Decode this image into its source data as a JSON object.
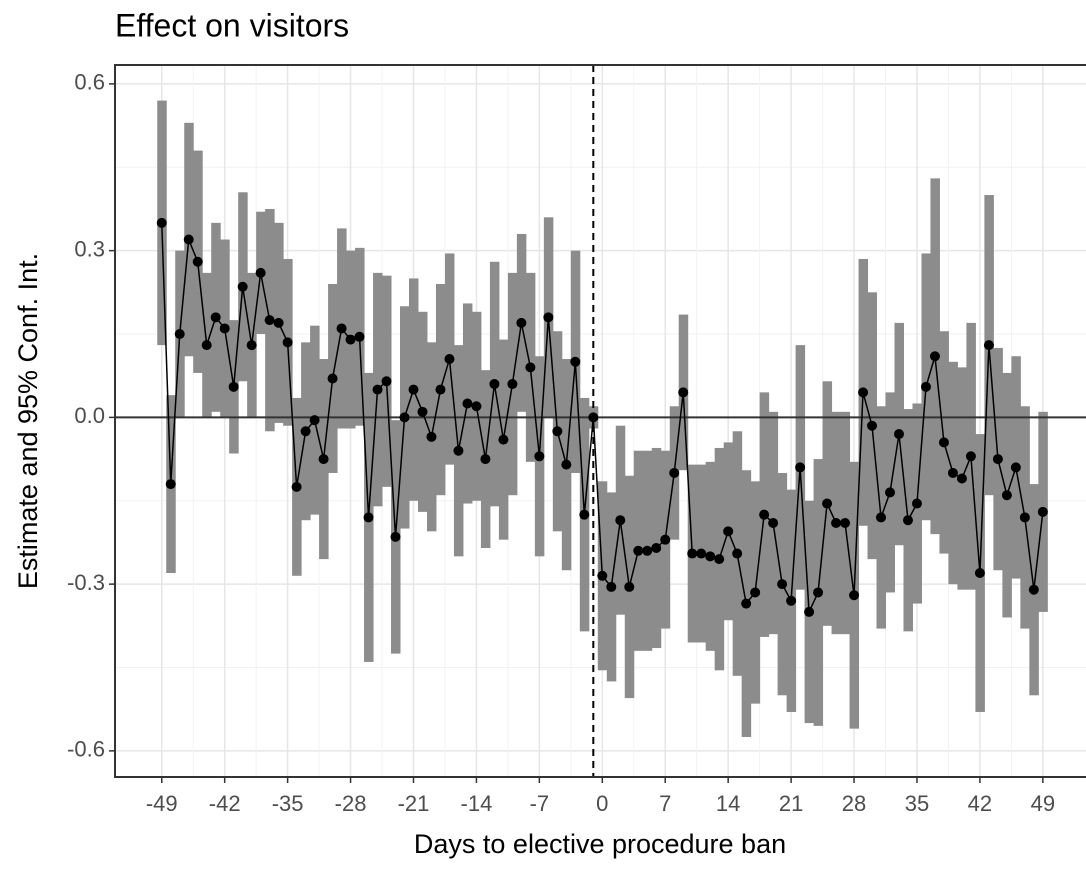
{
  "chart_data": {
    "type": "ribbon-line",
    "title": "Effect on visitors",
    "xlabel": "Days to elective procedure ban",
    "ylabel": "Estimate and 95% Conf. Int.",
    "x": [
      -49,
      -48,
      -47,
      -46,
      -45,
      -44,
      -43,
      -42,
      -41,
      -40,
      -39,
      -38,
      -37,
      -36,
      -35,
      -34,
      -33,
      -32,
      -31,
      -30,
      -29,
      -28,
      -27,
      -26,
      -25,
      -24,
      -23,
      -22,
      -21,
      -20,
      -19,
      -18,
      -17,
      -16,
      -15,
      -14,
      -13,
      -12,
      -11,
      -10,
      -9,
      -8,
      -7,
      -6,
      -5,
      -4,
      -3,
      -2,
      -1,
      0,
      1,
      2,
      3,
      4,
      5,
      6,
      7,
      8,
      9,
      10,
      11,
      12,
      13,
      14,
      15,
      16,
      17,
      18,
      19,
      20,
      21,
      22,
      23,
      24,
      25,
      26,
      27,
      28,
      29,
      30,
      31,
      32,
      33,
      34,
      35,
      36,
      37,
      38,
      39,
      40,
      41,
      42,
      43,
      44,
      45,
      46,
      47,
      48,
      49
    ],
    "estimate": [
      0.35,
      -0.12,
      0.15,
      0.32,
      0.28,
      0.13,
      0.18,
      0.16,
      0.055,
      0.235,
      0.13,
      0.26,
      0.175,
      0.17,
      0.135,
      -0.125,
      -0.025,
      -0.005,
      -0.075,
      0.07,
      0.16,
      0.14,
      0.145,
      -0.18,
      0.05,
      0.065,
      -0.215,
      0,
      0.05,
      0.01,
      -0.035,
      0.05,
      0.105,
      -0.06,
      0.025,
      0.02,
      -0.075,
      0.06,
      -0.04,
      0.06,
      0.17,
      0.09,
      -0.07,
      0.18,
      -0.025,
      -0.085,
      0.1,
      -0.175,
      0,
      -0.285,
      -0.305,
      -0.185,
      -0.305,
      -0.24,
      -0.24,
      -0.235,
      -0.22,
      -0.1,
      0.045,
      -0.245,
      -0.245,
      -0.25,
      -0.255,
      -0.205,
      -0.245,
      -0.335,
      -0.315,
      -0.175,
      -0.19,
      -0.3,
      -0.33,
      -0.09,
      -0.35,
      -0.315,
      -0.155,
      -0.19,
      -0.19,
      -0.32,
      0.045,
      -0.015,
      -0.18,
      -0.135,
      -0.03,
      -0.185,
      -0.155,
      0.055,
      0.11,
      -0.045,
      -0.1,
      -0.11,
      -0.07,
      -0.28,
      0.13,
      -0.075,
      -0.14,
      -0.09,
      -0.18,
      -0.31,
      -0.17
    ],
    "lower": [
      0.13,
      -0.28,
      0,
      0.11,
      0.08,
      0,
      0.01,
      0,
      -0.065,
      0.065,
      0,
      0.15,
      -0.025,
      -0.01,
      -0.015,
      -0.285,
      -0.185,
      -0.175,
      -0.255,
      -0.1,
      -0.02,
      -0.02,
      -0.015,
      -0.44,
      -0.16,
      -0.125,
      -0.425,
      -0.2,
      -0.15,
      -0.17,
      -0.205,
      -0.14,
      -0.085,
      -0.25,
      -0.155,
      -0.15,
      -0.235,
      -0.16,
      -0.22,
      -0.14,
      0.01,
      -0.08,
      -0.25,
      0,
      -0.205,
      -0.275,
      -0.1,
      -0.385,
      -0.02,
      -0.455,
      -0.475,
      -0.355,
      -0.505,
      -0.42,
      -0.42,
      -0.415,
      -0.38,
      -0.22,
      -0.095,
      -0.405,
      -0.405,
      -0.42,
      -0.455,
      -0.365,
      -0.465,
      -0.575,
      -0.515,
      -0.395,
      -0.39,
      -0.5,
      -0.53,
      -0.31,
      -0.55,
      -0.555,
      -0.375,
      -0.39,
      -0.39,
      -0.56,
      -0.195,
      -0.255,
      -0.38,
      -0.315,
      -0.23,
      -0.385,
      -0.335,
      -0.185,
      -0.21,
      -0.245,
      -0.3,
      -0.31,
      -0.31,
      -0.53,
      -0.14,
      -0.275,
      -0.36,
      -0.29,
      -0.38,
      -0.5,
      -0.35
    ],
    "upper": [
      0.57,
      0.04,
      0.3,
      0.53,
      0.48,
      0.26,
      0.35,
      0.32,
      0.175,
      0.405,
      0.26,
      0.37,
      0.375,
      0.35,
      0.285,
      0.035,
      0.135,
      0.165,
      0.105,
      0.24,
      0.34,
      0.3,
      0.305,
      0.08,
      0.26,
      0.255,
      -0.005,
      0.2,
      0.25,
      0.19,
      0.135,
      0.24,
      0.295,
      0.13,
      0.205,
      0.19,
      0.085,
      0.28,
      0.14,
      0.26,
      0.33,
      0.26,
      0.11,
      0.36,
      0.155,
      0.105,
      0.3,
      0.035,
      0.02,
      -0.115,
      -0.135,
      -0.015,
      -0.105,
      -0.06,
      -0.06,
      -0.055,
      -0.06,
      0.02,
      0.185,
      -0.085,
      -0.085,
      -0.08,
      -0.055,
      -0.045,
      -0.025,
      -0.095,
      -0.115,
      0.045,
      0.01,
      -0.1,
      -0.13,
      0.13,
      -0.15,
      -0.075,
      0.065,
      0.01,
      0.01,
      -0.08,
      0.285,
      0.225,
      0.02,
      0.045,
      0.17,
      0.015,
      0.025,
      0.295,
      0.43,
      0.155,
      0.1,
      0.09,
      0.17,
      -0.03,
      0.4,
      0.125,
      0.08,
      0.11,
      0.02,
      -0.12,
      0.01
    ],
    "line_color": "#000000",
    "band_color": "#8c8c8c",
    "vline": -1,
    "hline": 0,
    "xlim": [
      -54.2,
      53.8
    ],
    "ylim": [
      -0.647,
      0.634
    ],
    "xticks": [
      -49,
      -42,
      -35,
      -28,
      -21,
      -14,
      -7,
      0,
      7,
      14,
      21,
      28,
      35,
      42,
      49
    ],
    "yticks": [
      -0.6,
      -0.3,
      {
        "value": 0,
        "label": "0.0"
      },
      0.3,
      0.6
    ],
    "grid": true
  }
}
